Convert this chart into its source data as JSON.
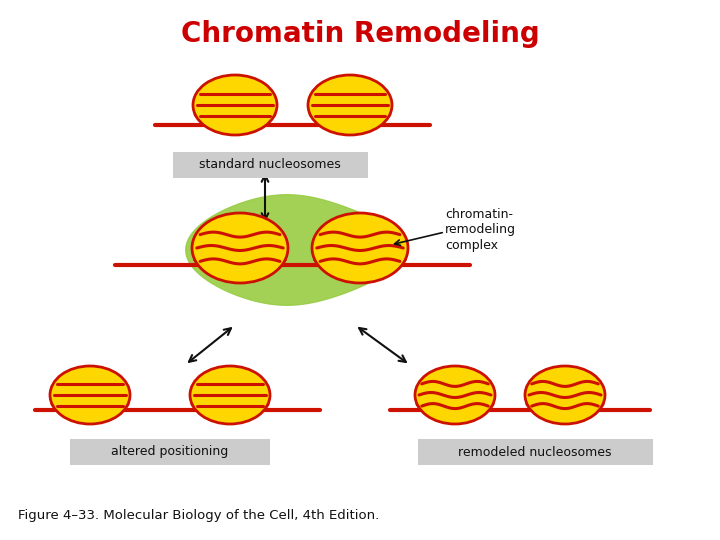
{
  "title": "Chromatin Remodeling",
  "title_color": "#cc0000",
  "title_fontsize": 20,
  "title_fontweight": "bold",
  "background_color": "#ffffff",
  "figure_caption": "Figure 4–33. Molecular Biology of the Cell, 4th Edition.",
  "caption_fontsize": 9.5,
  "labels": {
    "standard_nucleosomes": "standard nucleosomes",
    "chromatin_remodeling": "chromatin-\nremodeling\ncomplex",
    "altered_positioning": "altered positioning",
    "remodeled_nucleosomes": "remodeled nucleosomes"
  },
  "colors": {
    "nucleosome_yellow": "#FFD700",
    "nucleosome_orange": "#E8A000",
    "nucleosome_stripe": "#cc1100",
    "dna_line": "#cc1100",
    "green_blob": "#99cc44",
    "arrow": "#111111",
    "label_box": "#cccccc",
    "label_text": "#111111"
  }
}
